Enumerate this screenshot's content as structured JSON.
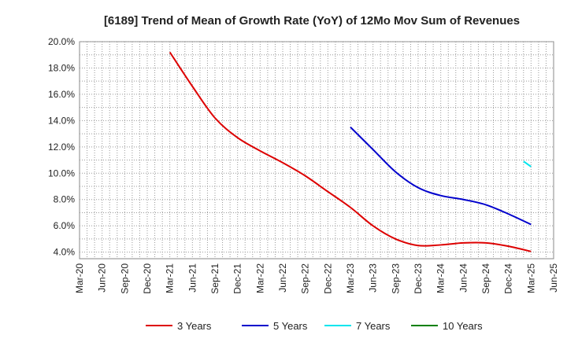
{
  "chart_data": {
    "type": "line",
    "title": "[6189]  Trend of Mean of Growth Rate (YoY) of 12Mo Mov Sum of Revenues",
    "xlabel": "",
    "ylabel": "",
    "y_unit": "%",
    "ylim": [
      3.5,
      20.0
    ],
    "yticks": [
      4.0,
      6.0,
      8.0,
      10.0,
      12.0,
      14.0,
      16.0,
      18.0,
      20.0
    ],
    "ytick_labels": [
      "4.0%",
      "6.0%",
      "8.0%",
      "10.0%",
      "12.0%",
      "14.0%",
      "16.0%",
      "18.0%",
      "20.0%"
    ],
    "grid": true,
    "legend_position": "bottom",
    "categories": [
      "Mar-20",
      "Jun-20",
      "Sep-20",
      "Dec-20",
      "Mar-21",
      "Jun-21",
      "Sep-21",
      "Dec-21",
      "Mar-22",
      "Jun-22",
      "Sep-22",
      "Dec-22",
      "Mar-23",
      "Jun-23",
      "Sep-23",
      "Dec-23",
      "Mar-24",
      "Jun-24",
      "Sep-24",
      "Dec-24",
      "Mar-25",
      "Jun-25"
    ],
    "series": [
      {
        "name": "3 Years",
        "color": "#dd0000",
        "values": [
          null,
          null,
          null,
          null,
          19.2,
          16.6,
          14.2,
          12.7,
          11.7,
          10.8,
          9.8,
          8.6,
          7.4,
          6.0,
          5.0,
          4.5,
          4.55,
          4.7,
          4.7,
          4.45,
          4.05,
          null
        ]
      },
      {
        "name": "5 Years",
        "color": "#0000cc",
        "values": [
          null,
          null,
          null,
          null,
          null,
          null,
          null,
          null,
          null,
          null,
          null,
          null,
          13.5,
          11.8,
          10.1,
          8.9,
          8.3,
          8.0,
          7.6,
          6.9,
          6.1,
          null
        ]
      },
      {
        "name": "7 Years",
        "color": "#00e5ee",
        "values": [
          null,
          null,
          null,
          null,
          null,
          null,
          null,
          null,
          null,
          null,
          null,
          null,
          null,
          null,
          null,
          null,
          null,
          null,
          null,
          null,
          11.0,
          null
        ],
        "segment_start": 10.9,
        "segment_end": 10.5
      },
      {
        "name": "10 Years",
        "color": "#008000",
        "values": [
          null,
          null,
          null,
          null,
          null,
          null,
          null,
          null,
          null,
          null,
          null,
          null,
          null,
          null,
          null,
          null,
          null,
          null,
          null,
          null,
          null,
          null
        ]
      }
    ]
  }
}
